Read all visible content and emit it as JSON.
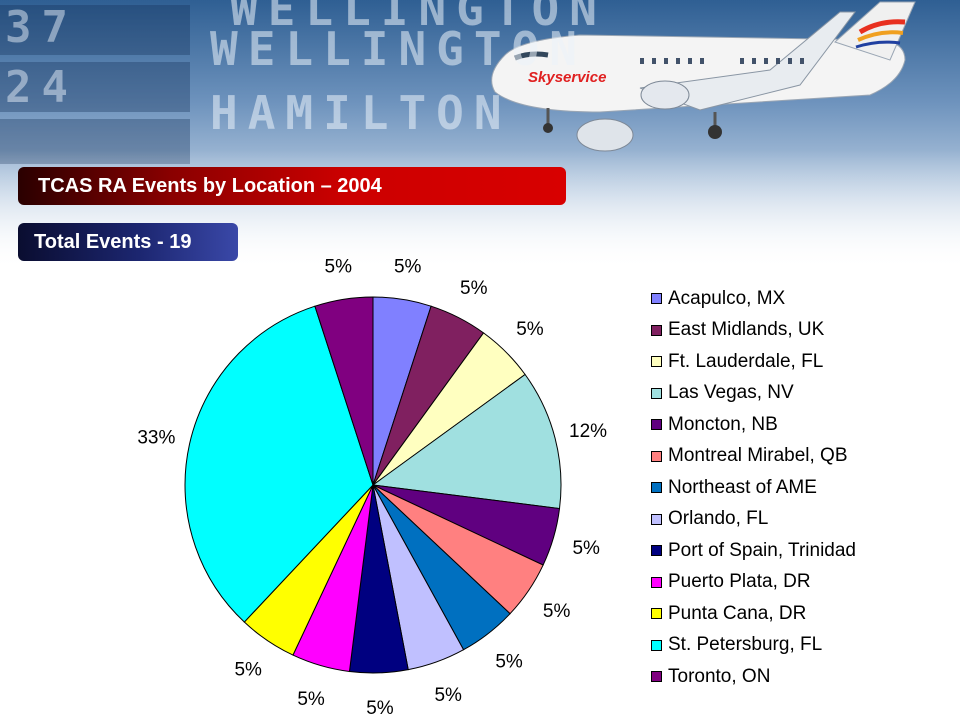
{
  "header": {
    "title": "TCAS RA Events by Location – 2004",
    "total": "Total Events - 19",
    "board_words": [
      "WELLINGTON",
      "WELLINGTON",
      "HAMILTON"
    ],
    "board_numbers": [
      "37",
      "24"
    ],
    "airline_logo": "Skyservice"
  },
  "chart_data": {
    "type": "pie",
    "slices": [
      {
        "label": "Acapulco, MX",
        "value": 5,
        "pct_label": "5%",
        "color": "#8080ff"
      },
      {
        "label": "East Midlands, UK",
        "value": 5,
        "pct_label": "5%",
        "color": "#802060"
      },
      {
        "label": "Ft. Lauderdale, FL",
        "value": 5,
        "pct_label": "5%",
        "color": "#ffffc0"
      },
      {
        "label": "Las Vegas, NV",
        "value": 12,
        "pct_label": "12%",
        "color": "#a0e0e0"
      },
      {
        "label": "Moncton, NB",
        "value": 5,
        "pct_label": "5%",
        "color": "#600080"
      },
      {
        "label": "Montreal Mirabel, QB",
        "value": 5,
        "pct_label": "5%",
        "color": "#ff8080"
      },
      {
        "label": "Northeast of AME",
        "value": 5,
        "pct_label": "5%",
        "color": "#0070c0"
      },
      {
        "label": "Orlando, FL",
        "value": 5,
        "pct_label": "5%",
        "color": "#c0c0ff"
      },
      {
        "label": "Port of Spain, Trinidad",
        "value": 5,
        "pct_label": "5%",
        "color": "#000080"
      },
      {
        "label": "Puerto Plata, DR",
        "value": 5,
        "pct_label": "5%",
        "color": "#ff00ff"
      },
      {
        "label": "Punta Cana, DR",
        "value": 5,
        "pct_label": "5%",
        "color": "#ffff00"
      },
      {
        "label": "St. Petersburg, FL",
        "value": 33,
        "pct_label": "33%",
        "color": "#00ffff"
      },
      {
        "label": "Toronto, ON",
        "value": 5,
        "pct_label": "5%",
        "color": "#800080"
      }
    ],
    "legend_position": "right"
  }
}
